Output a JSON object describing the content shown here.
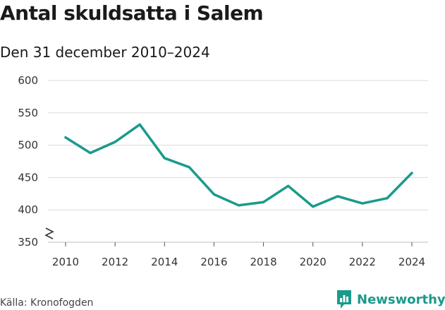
{
  "header": {
    "title": "Antal skuldsatta i Salem",
    "subtitle": "Den 31 december 2010–2024"
  },
  "footer": {
    "source": "Källa: Kronofogden",
    "brand": "Newsworthy"
  },
  "colors": {
    "line": "#1a9a8c",
    "grid": "#d9d9d9",
    "brand": "#1a9a8c"
  },
  "chart_data": {
    "type": "line",
    "title": "Antal skuldsatta i Salem",
    "subtitle": "Den 31 december 2010–2024",
    "xlabel": "",
    "ylabel": "",
    "x": [
      2010,
      2011,
      2012,
      2013,
      2014,
      2015,
      2016,
      2017,
      2018,
      2019,
      2020,
      2021,
      2022,
      2023,
      2024
    ],
    "series": [
      {
        "name": "Antal skuldsatta",
        "values": [
          512,
          488,
          505,
          532,
          480,
          466,
          424,
          407,
          412,
          437,
          405,
          421,
          410,
          418,
          457
        ]
      }
    ],
    "xticks": [
      "2010",
      "2012",
      "2014",
      "2016",
      "2018",
      "2020",
      "2022",
      "2024"
    ],
    "yticks": [
      "350",
      "400",
      "450",
      "500",
      "550",
      "600"
    ],
    "ylim": [
      350,
      600
    ],
    "xlim": [
      2010,
      2024
    ],
    "axis_break": true,
    "grid": true
  }
}
